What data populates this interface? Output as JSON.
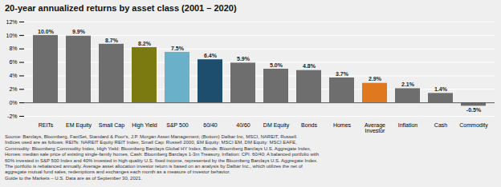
{
  "chart_data": {
    "type": "bar",
    "title": "20-year annualized returns by asset class (2001 – 2020)",
    "categories": [
      "REITs",
      "EM Equity",
      "Small Cap",
      "High Yield",
      "S&P 500",
      "60/40",
      "40/60",
      "DM Equity",
      "Bonds",
      "Homes",
      "Average\nInvestor",
      "Inflation",
      "Cash",
      "Commodity"
    ],
    "values": [
      10.0,
      9.9,
      8.7,
      8.2,
      7.5,
      6.4,
      5.9,
      5.0,
      4.8,
      3.7,
      2.9,
      2.1,
      1.4,
      -0.5
    ],
    "value_labels": [
      "10.0%",
      "9.9%",
      "8.7%",
      "8.2%",
      "7.5%",
      "6.4%",
      "5.9%",
      "5.0%",
      "4.8%",
      "3.7%",
      "2.9%",
      "2.1%",
      "1.4%",
      "-0.5%"
    ],
    "colors": [
      "#6e6e6e",
      "#6e6e6e",
      "#6e6e6e",
      "#7a7a10",
      "#6ab0c8",
      "#1e4e6e",
      "#6e6e6e",
      "#6e6e6e",
      "#6e6e6e",
      "#6e6e6e",
      "#e07820",
      "#6e6e6e",
      "#6e6e6e",
      "#6e6e6e"
    ],
    "ylim": [
      -2,
      12
    ],
    "yticks": [
      {
        "value": -2,
        "label": "-2%"
      },
      {
        "value": 0,
        "label": "0%"
      },
      {
        "value": 2,
        "label": "2%"
      },
      {
        "value": 4,
        "label": "4%"
      },
      {
        "value": 6,
        "label": "6%"
      },
      {
        "value": 8,
        "label": "8%"
      },
      {
        "value": 10,
        "label": "10%"
      },
      {
        "value": 12,
        "label": "12%"
      }
    ],
    "grid": true,
    "data_labels": true,
    "footnote": [
      "Source: Barclays, Bloomberg, FactSet, Standard & Poor's, J.P. Morgan Asset Management; (Bottom) Dalbar Inc, MSCI, NAREIT, Russell.",
      "Indices used are as follows: REITs: NAREIT Equity REIT Index, Small Cap: Russell 2000, EM Equity: MSCI EM, DM Equity: MSCI EAFE,",
      "Commodity: Bloomberg Commodity Index, High Yield: Bloomberg Barclays Global HY Index, Bonds: Bloomberg Barclays U.S. Aggregate Index,",
      "Homes: median sale price of existing single-family homes, Cash: Bloomberg Barclays 1-3m Treasury, Inflation: CPI. 60/40: A balanced portfolio with",
      "60% invested in S&P 500 Index and 40% invested in high-quality U.S. fixed income, represented by the Bloomberg Barclays U.S. Aggregate Index.",
      "The portfolio is rebalanced annually. Average asset allocation investor return is based on an analysis by Dalbar Inc., which utilizes the net of",
      "aggregate mutual fund sales, redemptions and exchanges each month as a measure of investor behavior.",
      "Guide to the Markets – U.S. Data are as of September 30, 2021."
    ]
  }
}
